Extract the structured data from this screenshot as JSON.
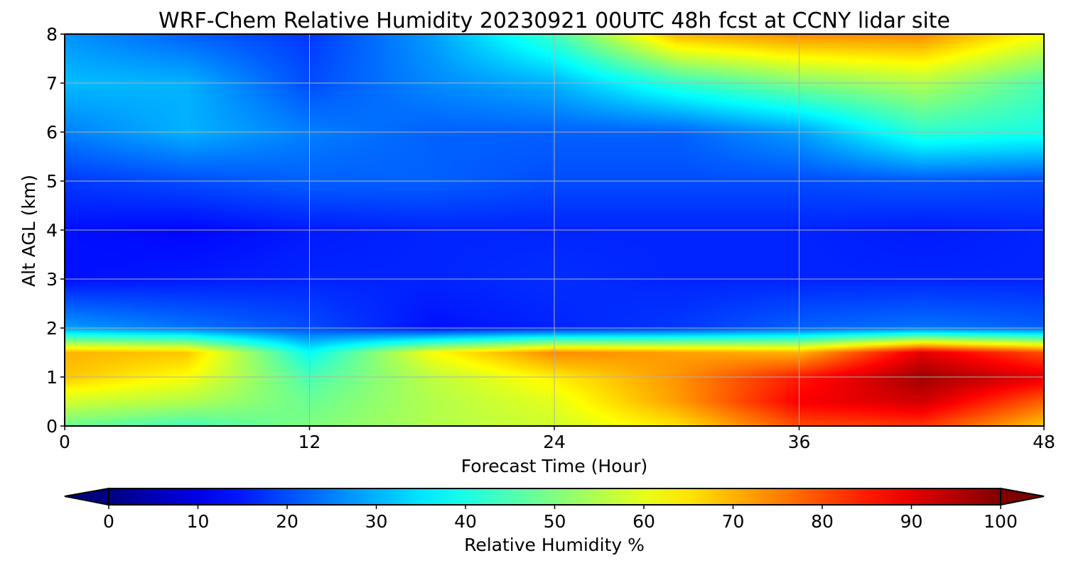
{
  "chart_data": {
    "type": "heatmap",
    "title": "WRF-Chem Relative Humidity 20230921 00UTC 48h fcst at CCNY lidar site",
    "xlabel": "Forecast Time (Hour)",
    "ylabel": "Alt AGL (km)",
    "xlim": [
      0,
      48
    ],
    "ylim": [
      0,
      8
    ],
    "x_ticks": [
      0,
      12,
      24,
      36,
      48
    ],
    "y_ticks": [
      0,
      1,
      2,
      3,
      4,
      5,
      6,
      7,
      8
    ],
    "grid": true,
    "colormap": "jet",
    "colorbar": {
      "label": "Relative Humidity %",
      "vmin": 0,
      "vmax": 100,
      "ticks": [
        0,
        10,
        20,
        30,
        40,
        50,
        60,
        70,
        80,
        90,
        100
      ],
      "extend": "both",
      "orientation": "horizontal",
      "placement": "bottom"
    },
    "x": [
      0,
      6,
      12,
      18,
      24,
      30,
      36,
      42,
      48
    ],
    "y": [
      0,
      0.5,
      1,
      1.5,
      2,
      3,
      4,
      5,
      6,
      7,
      8
    ],
    "z": [
      [
        48,
        44,
        50,
        55,
        58,
        65,
        80,
        82,
        68
      ],
      [
        58,
        55,
        48,
        55,
        60,
        72,
        88,
        92,
        78
      ],
      [
        68,
        62,
        45,
        56,
        64,
        73,
        85,
        97,
        90
      ],
      [
        70,
        68,
        38,
        62,
        74,
        72,
        70,
        90,
        80
      ],
      [
        28,
        24,
        20,
        14,
        16,
        18,
        22,
        24,
        22
      ],
      [
        14,
        15,
        16,
        16,
        17,
        16,
        16,
        16,
        16
      ],
      [
        14,
        13,
        15,
        16,
        16,
        16,
        16,
        15,
        16
      ],
      [
        18,
        20,
        22,
        22,
        20,
        20,
        20,
        21,
        20
      ],
      [
        25,
        30,
        25,
        22,
        22,
        22,
        28,
        42,
        40
      ],
      [
        31,
        30,
        20,
        26,
        30,
        42,
        50,
        55,
        45
      ],
      [
        27,
        22,
        18,
        28,
        44,
        70,
        74,
        74,
        62
      ]
    ]
  }
}
